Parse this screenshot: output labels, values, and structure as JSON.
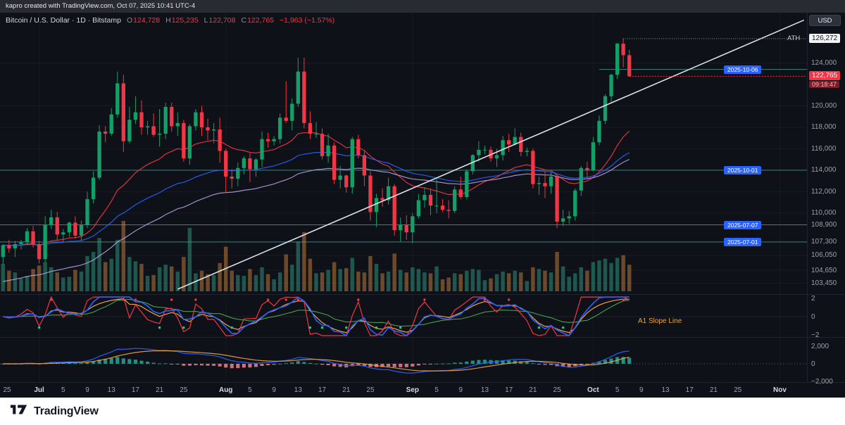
{
  "topbar": {
    "caption": "kapro created with TradingView.com, Oct 07, 2025 10:41 UTC-4"
  },
  "header": {
    "title": "Bitcoin / U.S. Dollar · 1D · Bitstamp",
    "o_label": "O",
    "o": "124,728",
    "h_label": "H",
    "h": "125,235",
    "l_label": "L",
    "l": "122,708",
    "c_label": "C",
    "c": "122,765",
    "change": "−1,963 (−1.57%)"
  },
  "price_scale": {
    "currency": "USD",
    "ticks": [
      {
        "v": 124000,
        "t": "124,000"
      },
      {
        "v": 120000,
        "t": "120,000"
      },
      {
        "v": 118000,
        "t": "118,000"
      },
      {
        "v": 116000,
        "t": "116,000"
      },
      {
        "v": 114000,
        "t": "114,000"
      },
      {
        "v": 112000,
        "t": "112,000"
      },
      {
        "v": 110000,
        "t": "110,000"
      },
      {
        "v": 108900,
        "t": "108,900"
      },
      {
        "v": 107300,
        "t": "107,300"
      },
      {
        "v": 106050,
        "t": "106,050"
      },
      {
        "v": 104650,
        "t": "104,650"
      },
      {
        "v": 103450,
        "t": "103,450"
      }
    ],
    "ath": {
      "label": "ATH",
      "v": 126272,
      "t": "126,272"
    },
    "last": {
      "v": 122765,
      "t": "122,765",
      "countdown": "09:18:47"
    }
  },
  "levels": [
    {
      "v": 123400,
      "date": "2025-10-06",
      "from_slot": 99
    },
    {
      "v": 114000,
      "date": "2025-10-01",
      "from_slot": 0
    },
    {
      "v": 108900,
      "date": "2025-07-07",
      "from_slot": 0
    },
    {
      "v": 107300,
      "date": "2025-07-01",
      "from_slot": 0
    }
  ],
  "panels": {
    "p1": {
      "label": "A1 Slope Line",
      "ticks": [
        {
          "v": 2,
          "t": "2"
        },
        {
          "v": 0,
          "t": "0"
        },
        {
          "v": -2,
          "t": "−2"
        }
      ]
    },
    "p2": {
      "ticks": [
        {
          "v": 2000,
          "t": "2,000"
        },
        {
          "v": 0,
          "t": "0"
        },
        {
          "v": -2000,
          "t": "−2,000"
        }
      ]
    }
  },
  "time_axis": [
    {
      "t": "25",
      "s": 0
    },
    {
      "t": "Jul",
      "s": 6,
      "b": 1
    },
    {
      "t": "5",
      "s": 10
    },
    {
      "t": "9",
      "s": 14
    },
    {
      "t": "13",
      "s": 18
    },
    {
      "t": "17",
      "s": 22
    },
    {
      "t": "21",
      "s": 26
    },
    {
      "t": "25",
      "s": 30
    },
    {
      "t": "Aug",
      "s": 37,
      "b": 1
    },
    {
      "t": "5",
      "s": 41
    },
    {
      "t": "9",
      "s": 45
    },
    {
      "t": "13",
      "s": 49
    },
    {
      "t": "17",
      "s": 53
    },
    {
      "t": "21",
      "s": 57
    },
    {
      "t": "25",
      "s": 61
    },
    {
      "t": "Sep",
      "s": 68,
      "b": 1
    },
    {
      "t": "5",
      "s": 72
    },
    {
      "t": "9",
      "s": 76
    },
    {
      "t": "13",
      "s": 80
    },
    {
      "t": "17",
      "s": 84
    },
    {
      "t": "21",
      "s": 88
    },
    {
      "t": "25",
      "s": 92
    },
    {
      "t": "Oct",
      "s": 98,
      "b": 1
    },
    {
      "t": "5",
      "s": 102
    },
    {
      "t": "9",
      "s": 106
    },
    {
      "t": "13",
      "s": 110
    },
    {
      "t": "17",
      "s": 114
    },
    {
      "t": "21",
      "s": 118
    },
    {
      "t": "25",
      "s": 122
    },
    {
      "t": "Nov",
      "s": 129,
      "b": 1
    }
  ],
  "footer": {
    "brand": "TradingView"
  },
  "colors": {
    "up": "#159f68",
    "down": "#f23645",
    "vol_up": "#2f9e86",
    "vol_down": "#c9813e",
    "line_teal": "#2b8a7f",
    "badge_blue": "#2962ff",
    "ma_fast": "#f23645",
    "ma_mid": "#2962ff",
    "ma_slow": "#b39ddb",
    "trend": "#dde2ea",
    "ath_line": "#9198a3",
    "macd": "#2962ff",
    "signal": "#f0a341",
    "hist_up": "#26a69a",
    "hist_down": "#f77e85",
    "p1_red": "#f23645",
    "p1_blue": "#2962ff",
    "p1_green": "#4caf50",
    "p1_orange": "#f0a341",
    "dot_green": "#31c48d"
  },
  "chart_data": {
    "type": "candlestick",
    "title": "Bitcoin / U.S. Dollar",
    "exchange": "Bitstamp",
    "interval": "1D",
    "start_date": "2025-06-25",
    "columns": [
      "open",
      "high",
      "low",
      "close",
      "volume_rel"
    ],
    "y_range": [
      102700,
      128300
    ],
    "ath": 126272,
    "last_close": 122765,
    "trendline": {
      "from_slot": 29,
      "from_price": 102900,
      "to_slot": 133,
      "to_price": 128000
    },
    "overlays": {
      "emas": [
        {
          "period": 20,
          "color": "#f23645"
        },
        {
          "period": 45,
          "color": "#2962ff"
        },
        {
          "period": 60,
          "seed": 103500,
          "color": "#b39ddb"
        }
      ]
    },
    "lower_panels": [
      {
        "name": "A1 Slope Line",
        "range": [
          -2,
          2
        ]
      },
      {
        "name": "MACD",
        "range": [
          -2000,
          2000
        ],
        "params": [
          12,
          26,
          9
        ]
      }
    ],
    "candles": [
      [
        105900,
        107100,
        105200,
        107000,
        3.2
      ],
      [
        107000,
        107500,
        106300,
        106700,
        2.4
      ],
      [
        106700,
        107400,
        105900,
        107100,
        2.2
      ],
      [
        107100,
        107500,
        106600,
        107300,
        1.5
      ],
      [
        107300,
        108600,
        107000,
        108300,
        1.8
      ],
      [
        108300,
        108800,
        106800,
        107100,
        2.6
      ],
      [
        107100,
        107400,
        105300,
        105700,
        3.0
      ],
      [
        105700,
        109700,
        105400,
        108900,
        3.4
      ],
      [
        108900,
        110300,
        108500,
        109600,
        2.8
      ],
      [
        109600,
        110100,
        107400,
        108000,
        2.2
      ],
      [
        108000,
        108500,
        107300,
        108200,
        1.6
      ],
      [
        108200,
        109200,
        107800,
        109100,
        1.7
      ],
      [
        109100,
        109700,
        107600,
        107900,
        2.5
      ],
      [
        107900,
        109300,
        107400,
        108900,
        2.3
      ],
      [
        108900,
        112000,
        108600,
        111300,
        4.1
      ],
      [
        111300,
        113900,
        110900,
        113300,
        4.6
      ],
      [
        113300,
        118200,
        113100,
        117600,
        6.2
      ],
      [
        117600,
        118100,
        116600,
        117400,
        3.4
      ],
      [
        117400,
        119800,
        117200,
        119200,
        3.8
      ],
      [
        119200,
        123200,
        118900,
        122100,
        6.0
      ],
      [
        122100,
        122900,
        115700,
        116700,
        8.2
      ],
      [
        116700,
        119900,
        116500,
        118700,
        4.0
      ],
      [
        118700,
        120900,
        118300,
        119400,
        3.5
      ],
      [
        119400,
        120500,
        117300,
        118000,
        3.2
      ],
      [
        118000,
        118600,
        117300,
        118100,
        1.8
      ],
      [
        118100,
        119300,
        117100,
        117300,
        1.9
      ],
      [
        117300,
        119700,
        116200,
        117400,
        2.8
      ],
      [
        117400,
        120300,
        116900,
        119900,
        3.1
      ],
      [
        119900,
        120300,
        117600,
        118100,
        2.9
      ],
      [
        118100,
        119400,
        117200,
        118400,
        2.3
      ],
      [
        118400,
        118700,
        114800,
        115100,
        4.0
      ],
      [
        115100,
        118300,
        114500,
        118100,
        7.4
      ],
      [
        118100,
        119700,
        117700,
        119400,
        2.1
      ],
      [
        119400,
        120000,
        117200,
        118000,
        2.4
      ],
      [
        118000,
        118800,
        116800,
        117700,
        2.0
      ],
      [
        117700,
        118400,
        116500,
        117800,
        1.9
      ],
      [
        117800,
        118900,
        114700,
        115800,
        3.3
      ],
      [
        115800,
        116000,
        111900,
        113400,
        5.2
      ],
      [
        113400,
        114100,
        112300,
        113200,
        2.4
      ],
      [
        113200,
        114700,
        112500,
        114200,
        1.9
      ],
      [
        114200,
        115300,
        113600,
        115100,
        1.8
      ],
      [
        115100,
        115600,
        112900,
        114100,
        2.6
      ],
      [
        114100,
        115100,
        113400,
        115000,
        1.9
      ],
      [
        115000,
        117600,
        114300,
        116900,
        2.8
      ],
      [
        116900,
        117500,
        116100,
        116700,
        2.0
      ],
      [
        116700,
        117200,
        116300,
        116900,
        1.4
      ],
      [
        116900,
        119300,
        116500,
        118900,
        2.2
      ],
      [
        118900,
        122300,
        118400,
        118600,
        4.3
      ],
      [
        118600,
        120700,
        117700,
        120200,
        3.1
      ],
      [
        120200,
        124500,
        119900,
        123200,
        5.8
      ],
      [
        123200,
        124500,
        117900,
        118400,
        6.9
      ],
      [
        118400,
        119500,
        116900,
        117400,
        3.8
      ],
      [
        117400,
        118500,
        117000,
        117400,
        2.1
      ],
      [
        117400,
        117900,
        115000,
        115300,
        2.2
      ],
      [
        115300,
        117400,
        114700,
        116300,
        2.5
      ],
      [
        116300,
        116600,
        112700,
        113100,
        3.4
      ],
      [
        113100,
        114400,
        112300,
        113500,
        2.6
      ],
      [
        113500,
        113600,
        111900,
        112400,
        2.7
      ],
      [
        112400,
        117100,
        111800,
        116900,
        3.9
      ],
      [
        116900,
        117300,
        115100,
        115400,
        2.3
      ],
      [
        115400,
        115800,
        112500,
        113500,
        2.2
      ],
      [
        113500,
        113900,
        109300,
        110100,
        4.1
      ],
      [
        110100,
        111800,
        108700,
        111400,
        3.2
      ],
      [
        111400,
        112300,
        110600,
        111200,
        2.1
      ],
      [
        111200,
        113300,
        110800,
        112500,
        2.3
      ],
      [
        112500,
        112700,
        107900,
        108400,
        4.4
      ],
      [
        108400,
        109600,
        107300,
        108900,
        2.5
      ],
      [
        108900,
        109800,
        107500,
        108200,
        2.2
      ],
      [
        108200,
        110000,
        107200,
        109700,
        2.8
      ],
      [
        109700,
        111800,
        109500,
        111200,
        2.6
      ],
      [
        111200,
        112400,
        110500,
        111700,
        2.2
      ],
      [
        111700,
        112300,
        109800,
        110700,
        2.1
      ],
      [
        110700,
        113300,
        110000,
        110700,
        2.9
      ],
      [
        110700,
        111300,
        110100,
        110300,
        1.4
      ],
      [
        110300,
        111200,
        109500,
        110200,
        1.6
      ],
      [
        110200,
        112500,
        110000,
        112200,
        2.1
      ],
      [
        112200,
        113400,
        111300,
        111500,
        2.0
      ],
      [
        111500,
        114100,
        111300,
        113900,
        2.4
      ],
      [
        113900,
        115500,
        113600,
        115400,
        2.6
      ],
      [
        115400,
        116700,
        114800,
        115900,
        2.5
      ],
      [
        115900,
        116300,
        115500,
        115900,
        1.3
      ],
      [
        115900,
        116200,
        114800,
        115100,
        1.5
      ],
      [
        115100,
        116000,
        114300,
        115400,
        2.0
      ],
      [
        115400,
        117200,
        114900,
        116800,
        2.3
      ],
      [
        116800,
        117400,
        115700,
        116400,
        2.1
      ],
      [
        116400,
        117900,
        116300,
        117100,
        2.4
      ],
      [
        117100,
        117500,
        115300,
        115700,
        2.2
      ],
      [
        115700,
        116100,
        115300,
        115800,
        1.2
      ],
      [
        115800,
        116000,
        112300,
        112700,
        2.8
      ],
      [
        112700,
        113400,
        111700,
        112800,
        2.6
      ],
      [
        112800,
        113900,
        111400,
        112500,
        2.4
      ],
      [
        112500,
        113800,
        111800,
        113400,
        2.2
      ],
      [
        113400,
        113500,
        108600,
        109200,
        4.6
      ],
      [
        109200,
        110300,
        108800,
        109500,
        2.9
      ],
      [
        109500,
        110200,
        109000,
        109700,
        1.7
      ],
      [
        109700,
        112300,
        109300,
        112100,
        2.1
      ],
      [
        112100,
        114400,
        111600,
        114200,
        2.8
      ],
      [
        114200,
        114800,
        113200,
        114000,
        2.4
      ],
      [
        114000,
        117100,
        113900,
        116600,
        3.4
      ],
      [
        116600,
        119100,
        116300,
        118600,
        3.6
      ],
      [
        118600,
        121100,
        118300,
        120900,
        3.8
      ],
      [
        120900,
        123000,
        120300,
        122900,
        3.3
      ],
      [
        122900,
        125900,
        122500,
        125800,
        3.9
      ],
      [
        125800,
        126272,
        123600,
        124728,
        4.2
      ],
      [
        124728,
        125235,
        122708,
        122765,
        3.1
      ]
    ]
  }
}
